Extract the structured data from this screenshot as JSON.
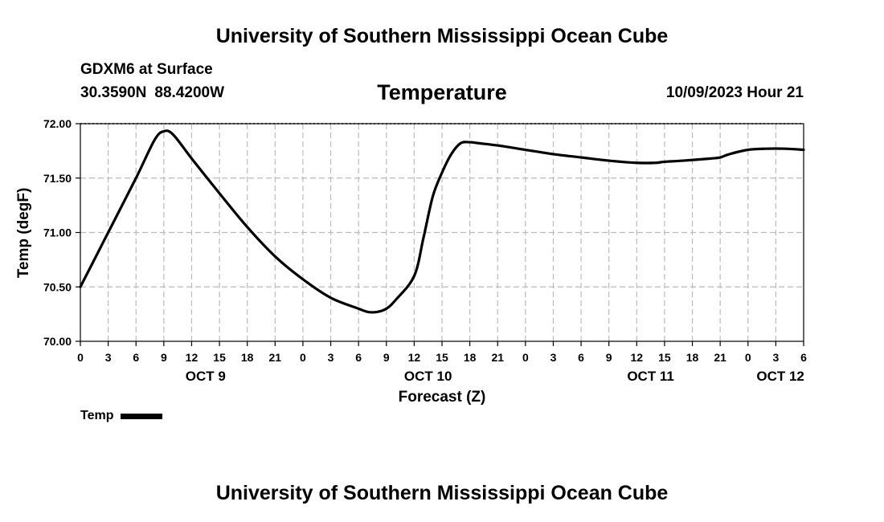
{
  "header": {
    "title": "University of Southern Mississippi Ocean Cube",
    "station": "GDXM6 at Surface",
    "lat": "30.3590N",
    "lon": "88.4200W",
    "chart_title": "Temperature",
    "timestamp": "10/09/2023 Hour 21"
  },
  "footer": {
    "title": "University of Southern Mississippi Ocean Cube"
  },
  "legend": {
    "label": "Temp"
  },
  "colors": {
    "line": "#000000",
    "grid": "#bbbbbb",
    "axis": "#000000"
  },
  "chart_data": {
    "type": "line",
    "title": "Temperature",
    "xlabel": "Forecast (Z)",
    "ylabel": "Temp (degF)",
    "ylim": [
      70.0,
      72.0
    ],
    "xlim_hours": [
      0,
      78
    ],
    "grid": true,
    "x_tick_step_hours": 3,
    "y_ticks": [
      70.0,
      70.5,
      71.0,
      71.5,
      72.0
    ],
    "y_tick_labels": [
      "70.00",
      "70.50",
      "71.00",
      "71.50",
      "72.00"
    ],
    "x_tick_labels": [
      "0",
      "3",
      "6",
      "9",
      "12",
      "15",
      "18",
      "21",
      "0",
      "3",
      "6",
      "9",
      "12",
      "15",
      "18",
      "21",
      "0",
      "3",
      "6",
      "9",
      "12",
      "15",
      "18",
      "21",
      "0",
      "3",
      "6"
    ],
    "day_labels": [
      {
        "label": "OCT 9",
        "hour": 13.5
      },
      {
        "label": "OCT 10",
        "hour": 37.5
      },
      {
        "label": "OCT 11",
        "hour": 61.5
      },
      {
        "label": "OCT 12",
        "hour": 75.5
      }
    ],
    "series": [
      {
        "name": "Temp",
        "x_hours": [
          0,
          3,
          6,
          8,
          9,
          10,
          12,
          15,
          18,
          21,
          24,
          27,
          30,
          31,
          32,
          33,
          34,
          36,
          37,
          38,
          39,
          40,
          41,
          42,
          43,
          45,
          48,
          51,
          54,
          57,
          60,
          62,
          63,
          65,
          68,
          69,
          70,
          72,
          74,
          76,
          78
        ],
        "values": [
          70.5,
          71.0,
          71.5,
          71.85,
          71.93,
          71.9,
          71.68,
          71.36,
          71.05,
          70.78,
          70.57,
          70.4,
          70.3,
          70.27,
          70.27,
          70.3,
          70.38,
          70.6,
          70.95,
          71.33,
          71.55,
          71.72,
          71.82,
          71.83,
          71.82,
          71.8,
          71.76,
          71.72,
          71.69,
          71.66,
          71.64,
          71.64,
          71.65,
          71.66,
          71.68,
          71.69,
          71.72,
          71.76,
          71.77,
          71.77,
          71.76
        ]
      }
    ]
  }
}
